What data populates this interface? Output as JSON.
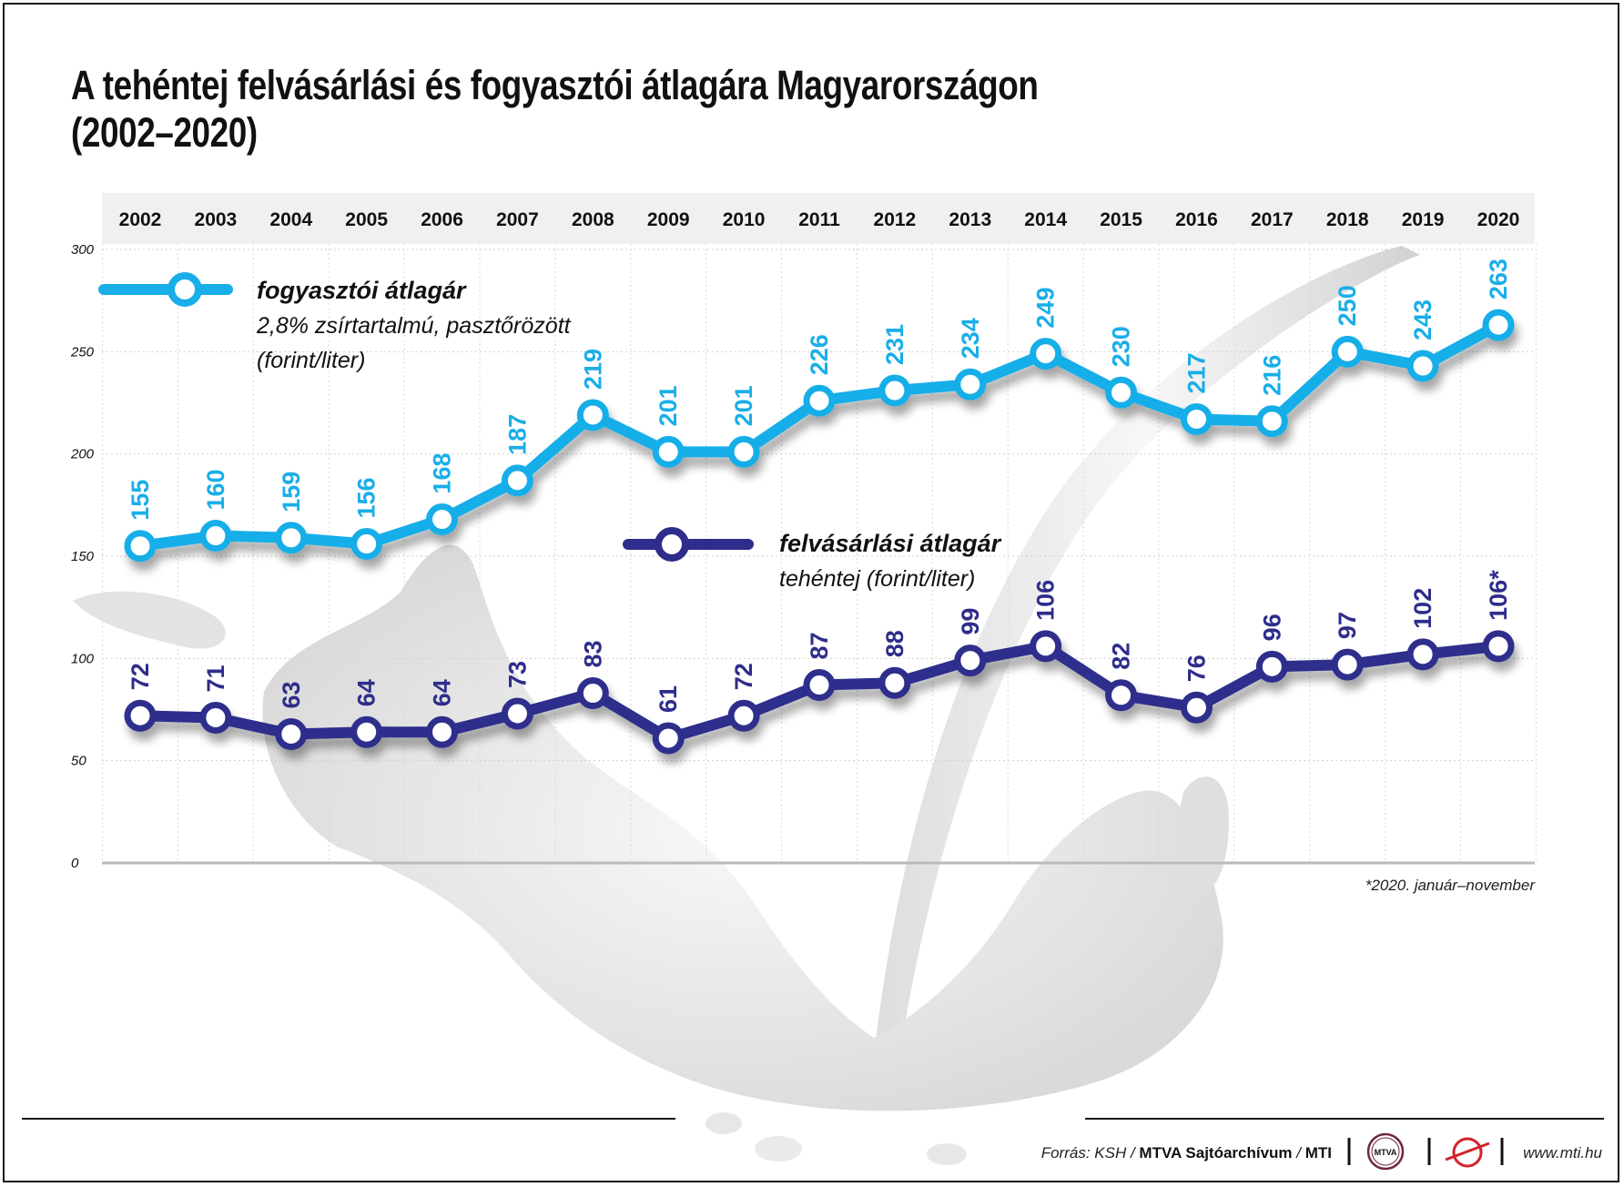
{
  "title_line1": "A tehéntej felvásárlási és fogyasztói átlagára Magyarországon",
  "title_line2": "(2002–2020)",
  "colors": {
    "consumer": "#19aee8",
    "purchase": "#2e2d8c",
    "grid": "#cccccc",
    "header_band": "#f0f0f0"
  },
  "chart_data": {
    "type": "line",
    "title": "A tehéntej felvásárlási és fogyasztói átlagára Magyarországon (2002–2020)",
    "categories": [
      "2002",
      "2003",
      "2004",
      "2005",
      "2006",
      "2007",
      "2008",
      "2009",
      "2010",
      "2011",
      "2012",
      "2013",
      "2014",
      "2015",
      "2016",
      "2017",
      "2018",
      "2019",
      "2020"
    ],
    "ylim": [
      0,
      300
    ],
    "yticks": [
      "0",
      "50",
      "100",
      "150",
      "200",
      "250",
      "300"
    ],
    "series": [
      {
        "name": "fogyasztói átlagár",
        "subtitle_line1": "2,8% zsírtartalmú, pasztőrözött",
        "subtitle_line2": "(forint/liter)",
        "values": [
          155,
          160,
          159,
          156,
          168,
          187,
          219,
          201,
          201,
          226,
          231,
          234,
          249,
          230,
          217,
          216,
          250,
          243,
          263
        ],
        "labels": [
          "155",
          "160",
          "159",
          "156",
          "168",
          "187",
          "219",
          "201",
          "201",
          "226",
          "231",
          "234",
          "249",
          "230",
          "217",
          "216",
          "250",
          "243",
          "263"
        ]
      },
      {
        "name": "felvásárlási átlagár",
        "subtitle_line1": "tehéntej (forint/liter)",
        "values": [
          72,
          71,
          63,
          64,
          64,
          73,
          83,
          61,
          72,
          87,
          88,
          99,
          106,
          82,
          76,
          96,
          97,
          102,
          106
        ],
        "labels": [
          "72",
          "71",
          "63",
          "64",
          "64",
          "73",
          "83",
          "61",
          "72",
          "87",
          "88",
          "99",
          "106",
          "82",
          "76",
          "96",
          "97",
          "102",
          "106*"
        ]
      }
    ],
    "grid": true,
    "legend": "inline"
  },
  "footnote": "*2020. január–november",
  "source": {
    "prefix": "Forrás: KSH / ",
    "bold": "MTVA Sajtóarchívum",
    "sep": " / ",
    "mti": "MTI",
    "logo1": "MTVA",
    "url": "www.mti.hu"
  }
}
